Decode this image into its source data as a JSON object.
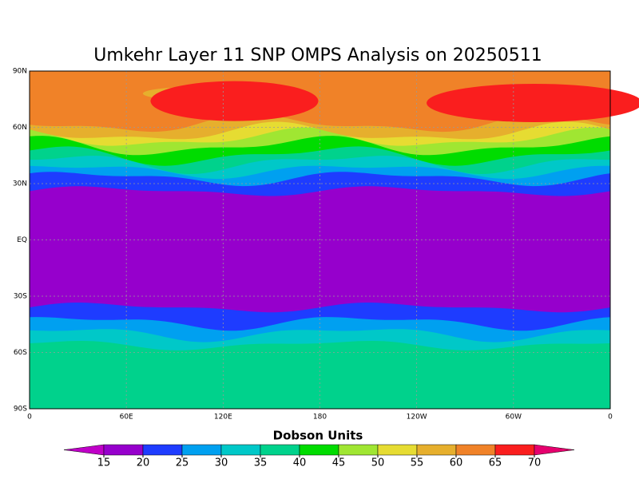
{
  "title": "Umkehr Layer 11 SNP OMPS Analysis on 20250511",
  "lat_labels": [
    "90N",
    "60N",
    "30N",
    "EQ",
    "30S",
    "60S",
    "90S"
  ],
  "lon_labels": [
    "0",
    "60E",
    "120E",
    "180",
    "120W",
    "60W",
    "0"
  ],
  "colorbar": {
    "label": "Dobson Units",
    "ticks": [
      15,
      20,
      25,
      30,
      35,
      40,
      45,
      50,
      55,
      60,
      65,
      70
    ],
    "under_color": "#c000c8",
    "over_color": "#e6006e",
    "colors": [
      "#9600cc",
      "#1e3cff",
      "#00a0f0",
      "#00c8c8",
      "#00d28c",
      "#00dc00",
      "#a0e632",
      "#e6dc32",
      "#e6af2d",
      "#f08228",
      "#fa1e1e"
    ]
  }
}
